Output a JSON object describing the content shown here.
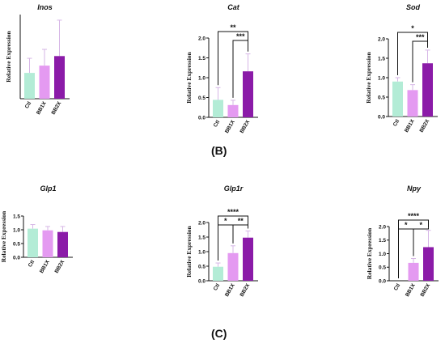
{
  "colors": {
    "Ctl": "#b3ecd6",
    "BB1X": "#e49af1",
    "BB2X": "#8b1ba8",
    "error_bar": "#d6b6e6"
  },
  "panel_labels": {
    "b": "(B)",
    "c": "(C)"
  },
  "chart_data": [
    {
      "type": "bar",
      "title": "Inos",
      "ylabel": "Relative Expression",
      "categories": [
        "Ctl",
        "BB1X",
        "BB2X"
      ],
      "values": [
        0.92,
        1.18,
        1.52
      ],
      "errors": [
        0.52,
        0.58,
        1.28
      ],
      "ylim": [
        0,
        3.0
      ],
      "yticks": [],
      "significance": []
    },
    {
      "type": "bar",
      "title": "Cat",
      "ylabel": "Relative Expression",
      "categories": [
        "Ctl",
        "BB1X",
        "BB2X"
      ],
      "values": [
        0.44,
        0.31,
        1.16
      ],
      "errors": [
        0.31,
        0.12,
        0.44
      ],
      "ylim": [
        0,
        2.0
      ],
      "yticks": [
        "0.0",
        "0.5",
        "1.0",
        "1.5",
        "2.0"
      ],
      "significance": [
        {
          "from": 0,
          "to": 2,
          "label": "**"
        },
        {
          "from": 1,
          "to": 2,
          "label": "***"
        }
      ]
    },
    {
      "type": "bar",
      "title": "Sod",
      "ylabel": "Relative Expression",
      "categories": [
        "Ctl",
        "BB1X",
        "BB2X"
      ],
      "values": [
        0.9,
        0.68,
        1.37
      ],
      "errors": [
        0.1,
        0.14,
        0.34
      ],
      "ylim": [
        0,
        2.0
      ],
      "yticks": [
        "0.0",
        "0.5",
        "1.0",
        "1.5",
        "2.0"
      ],
      "significance": [
        {
          "from": 0,
          "to": 2,
          "label": "*"
        },
        {
          "from": 1,
          "to": 2,
          "label": "***"
        }
      ]
    },
    {
      "type": "bar",
      "title": "Glp1",
      "ylabel": "Relative Expression",
      "categories": [
        "Ctl",
        "BB1X",
        "BB2X"
      ],
      "values": [
        1.04,
        0.98,
        0.92
      ],
      "errors": [
        0.15,
        0.14,
        0.2
      ],
      "ylim": [
        0,
        1.5
      ],
      "yticks": [
        "0.0",
        "0.5",
        "1.0",
        "1.5"
      ],
      "significance": []
    },
    {
      "type": "bar",
      "title": "Glp1r",
      "ylabel": "Relative Expression",
      "categories": [
        "Ctl",
        "BB1X",
        "BB2X"
      ],
      "values": [
        0.48,
        0.95,
        1.48
      ],
      "errors": [
        0.13,
        0.25,
        0.23
      ],
      "ylim": [
        0,
        2.0
      ],
      "yticks": [
        "0.0",
        "0.5",
        "1.0",
        "1.5",
        "2.0"
      ],
      "significance": [
        {
          "from": 0,
          "to": 2,
          "label": "****"
        },
        {
          "from": 0,
          "to": 1,
          "label": "*"
        },
        {
          "from": 1,
          "to": 2,
          "label": "**"
        }
      ]
    },
    {
      "type": "bar",
      "title": "Npy",
      "ylabel": "Relative Expression",
      "categories": [
        "Ctl",
        "BB1X",
        "BB2X"
      ],
      "values": [
        0.0,
        0.66,
        1.24
      ],
      "errors": [
        0.0,
        0.16,
        0.62
      ],
      "ylim": [
        0,
        2.0
      ],
      "yticks": [
        "0.0",
        "0.5",
        "1.0",
        "1.5",
        "2.0"
      ],
      "significance": [
        {
          "from": 0,
          "to": 2,
          "label": "****"
        },
        {
          "from": 0,
          "to": 1,
          "label": "*"
        },
        {
          "from": 1,
          "to": 2,
          "label": "*"
        }
      ]
    }
  ]
}
